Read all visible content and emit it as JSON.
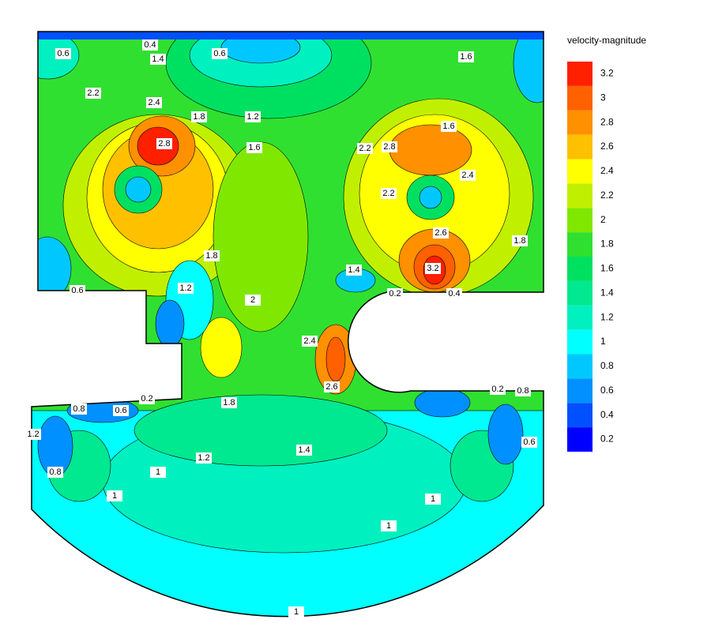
{
  "chart_data": {
    "type": "contour",
    "legend_title": "velocity-magnitude",
    "levels": [
      0.2,
      0.4,
      0.6,
      0.8,
      1,
      1.2,
      1.4,
      1.6,
      1.8,
      2,
      2.2,
      2.4,
      2.6,
      2.8,
      3,
      3.2
    ],
    "colors": [
      "#0000ff",
      "#0050ff",
      "#0090ff",
      "#00c8ff",
      "#00ffff",
      "#00f0c0",
      "#00e890",
      "#00e060",
      "#30e030",
      "#80e800",
      "#c0f000",
      "#ffff00",
      "#ffc000",
      "#ff9000",
      "#ff6000",
      "#ff2000"
    ],
    "contour_labels": [
      0.4,
      0.6,
      1.4,
      2.2,
      2.4,
      2.8,
      1.8,
      1.2,
      1.6,
      0.6,
      1.6,
      2.2,
      2.8,
      1.6,
      2.4,
      2.6,
      3.2,
      0.6,
      1.2,
      1.8,
      2,
      1.4,
      2.4,
      2.6,
      0.2,
      0.4,
      1.8,
      0.8,
      0.6,
      0.2,
      1.2,
      1.4,
      1,
      1,
      1,
      1,
      1,
      0.8,
      0.6,
      1.2,
      2.2,
      1.8,
      0.2,
      0.8
    ]
  }
}
